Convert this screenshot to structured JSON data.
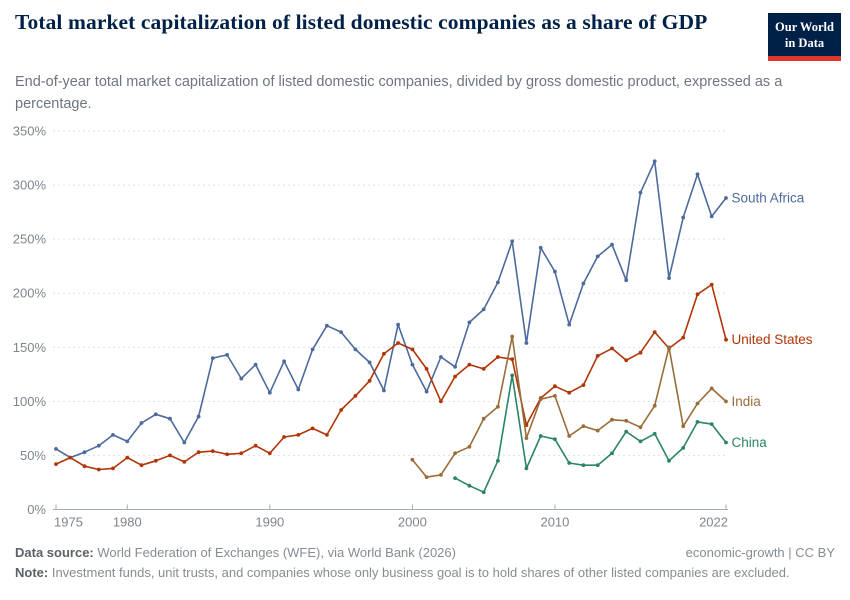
{
  "header": {
    "title": "Total market capitalization of listed domestic companies as a share of GDP",
    "subtitle": "End-of-year total market capitalization of listed domestic companies, divided by gross domestic product, expressed as a percentage.",
    "logo_line1": "Our World",
    "logo_line2": "in Data"
  },
  "chart_data": {
    "type": "line",
    "title": "Total market capitalization of listed domestic companies as a share of GDP",
    "xlabel": "",
    "ylabel": "",
    "xlim": [
      1975,
      2022
    ],
    "ylim": [
      0,
      350
    ],
    "grid": "horizontal dashed",
    "legend_position": "end-of-line labels",
    "x_ticks": [
      1975,
      1980,
      1990,
      2000,
      2010,
      2022
    ],
    "y_ticks": [
      "0%",
      "50%",
      "100%",
      "150%",
      "200%",
      "250%",
      "300%",
      "350%"
    ],
    "colors": {
      "axis_text": "#7d858d",
      "gridline": "#dde2e7",
      "axis_line": "#a3abb3"
    },
    "series": [
      {
        "name": "South Africa",
        "color": "#4C6A9C",
        "start_year": 1975,
        "values": [
          56,
          48,
          53,
          59,
          69,
          63,
          80,
          88,
          84,
          62,
          86,
          140,
          143,
          121,
          134,
          108,
          137,
          111,
          148,
          170,
          164,
          148,
          136,
          110,
          171,
          134,
          109,
          141,
          132,
          173,
          185,
          210,
          248,
          154,
          242,
          220,
          171,
          209,
          234,
          245,
          212,
          293,
          322,
          214,
          270,
          310,
          271,
          288
        ]
      },
      {
        "name": "United States",
        "color": "#B13507",
        "start_year": 1975,
        "values": [
          42,
          48,
          40,
          37,
          38,
          48,
          41,
          45,
          50,
          44,
          53,
          54,
          51,
          52,
          59,
          52,
          67,
          69,
          75,
          69,
          92,
          105,
          119,
          144,
          154,
          148,
          130,
          100,
          123,
          134,
          130,
          141,
          139,
          78,
          103,
          114,
          108,
          115,
          142,
          149,
          138,
          145,
          164,
          149,
          159,
          199,
          208,
          157
        ]
      },
      {
        "name": "India",
        "color": "#996D39",
        "start_year": 2000,
        "values": [
          46,
          30,
          32,
          52,
          58,
          84,
          95,
          160,
          66,
          102,
          105,
          68,
          77,
          73,
          83,
          82,
          76,
          96,
          150,
          77,
          98,
          112,
          100
        ]
      },
      {
        "name": "China",
        "color": "#2C8465",
        "start_year": 2003,
        "values": [
          29,
          22,
          16,
          45,
          124,
          38,
          68,
          65,
          43,
          41,
          41,
          52,
          72,
          63,
          70,
          45,
          57,
          81,
          79,
          62
        ]
      }
    ]
  },
  "footer": {
    "source_label": "Data source:",
    "source_value": " World Federation of Exchanges (WFE), via World Bank (2026)",
    "rights": "economic-growth | CC BY",
    "note_label": "Note:",
    "note_value": " Investment funds, unit trusts, and companies whose only business goal is to hold shares of other listed companies are excluded."
  }
}
